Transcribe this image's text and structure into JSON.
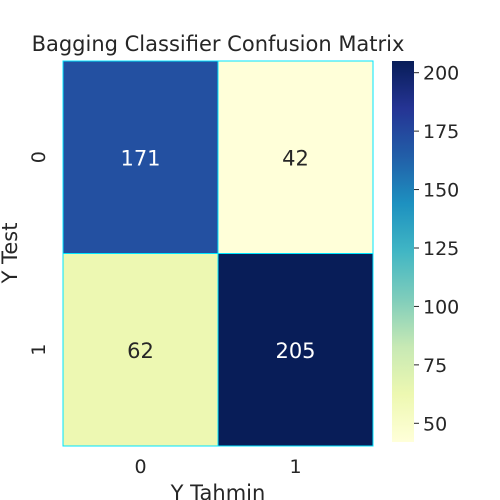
{
  "chart_data": {
    "type": "heatmap",
    "title": "Bagging Classifier Confusion Matrix",
    "xlabel": "Y Tahmin",
    "ylabel": "Y Test",
    "x_categories": [
      "0",
      "1"
    ],
    "y_categories": [
      "0",
      "1"
    ],
    "values": [
      [
        171,
        42
      ],
      [
        62,
        205
      ]
    ],
    "colormap": "YlGnBu",
    "cell_border_color": "#00e5ff",
    "colorbar": {
      "min": 42,
      "max": 205,
      "ticks": [
        50,
        75,
        100,
        125,
        150,
        175,
        200
      ]
    },
    "text_colors": {
      "dark": "#262626",
      "light": "#ffffff"
    }
  }
}
